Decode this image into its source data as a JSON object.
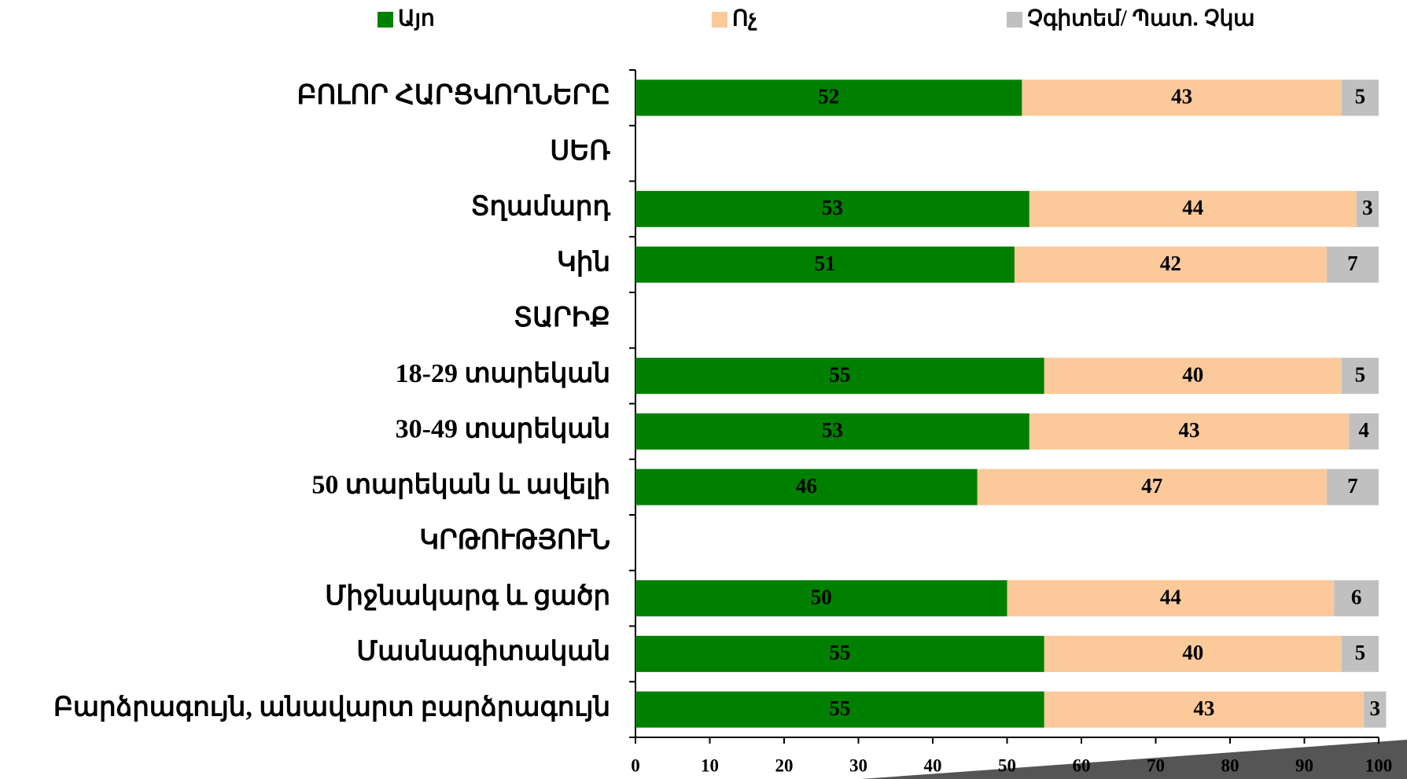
{
  "chart_data": {
    "type": "stacked_barh",
    "categories": [
      "ԲՈԼՈՐ ՀԱՐՑՎՈՂՆԵՐԸ",
      "ՍԵՌ",
      "Տղամարդ",
      "Կին",
      "ՏԱՐԻՔ",
      "18-29 տարեկան",
      "30-49 տարեկան",
      "50 տարեկան և ավելի",
      "ԿՐԹՈՒԹՅՈՒՆ",
      "Միջնակարգ և ցածր",
      "Մասնագիտական",
      "Բարձրագույն, անավարտ բարձրագույն"
    ],
    "series": [
      {
        "name": "Այո",
        "color": "#008000",
        "values": [
          52,
          null,
          53,
          51,
          null,
          55,
          53,
          46,
          null,
          50,
          55,
          55
        ]
      },
      {
        "name": "Ոչ",
        "color": "#fcc99b",
        "values": [
          43,
          null,
          44,
          42,
          null,
          40,
          43,
          47,
          null,
          44,
          40,
          43
        ]
      },
      {
        "name": "Չգիտեմ/ Պատ. Չկա",
        "color": "#c0c0c0",
        "values": [
          5,
          null,
          3,
          7,
          null,
          5,
          4,
          7,
          null,
          6,
          5,
          3
        ]
      }
    ],
    "xlim": [
      0,
      100
    ],
    "xticks": [
      0,
      10,
      20,
      30,
      40,
      50,
      60,
      70,
      80,
      90,
      100
    ]
  }
}
